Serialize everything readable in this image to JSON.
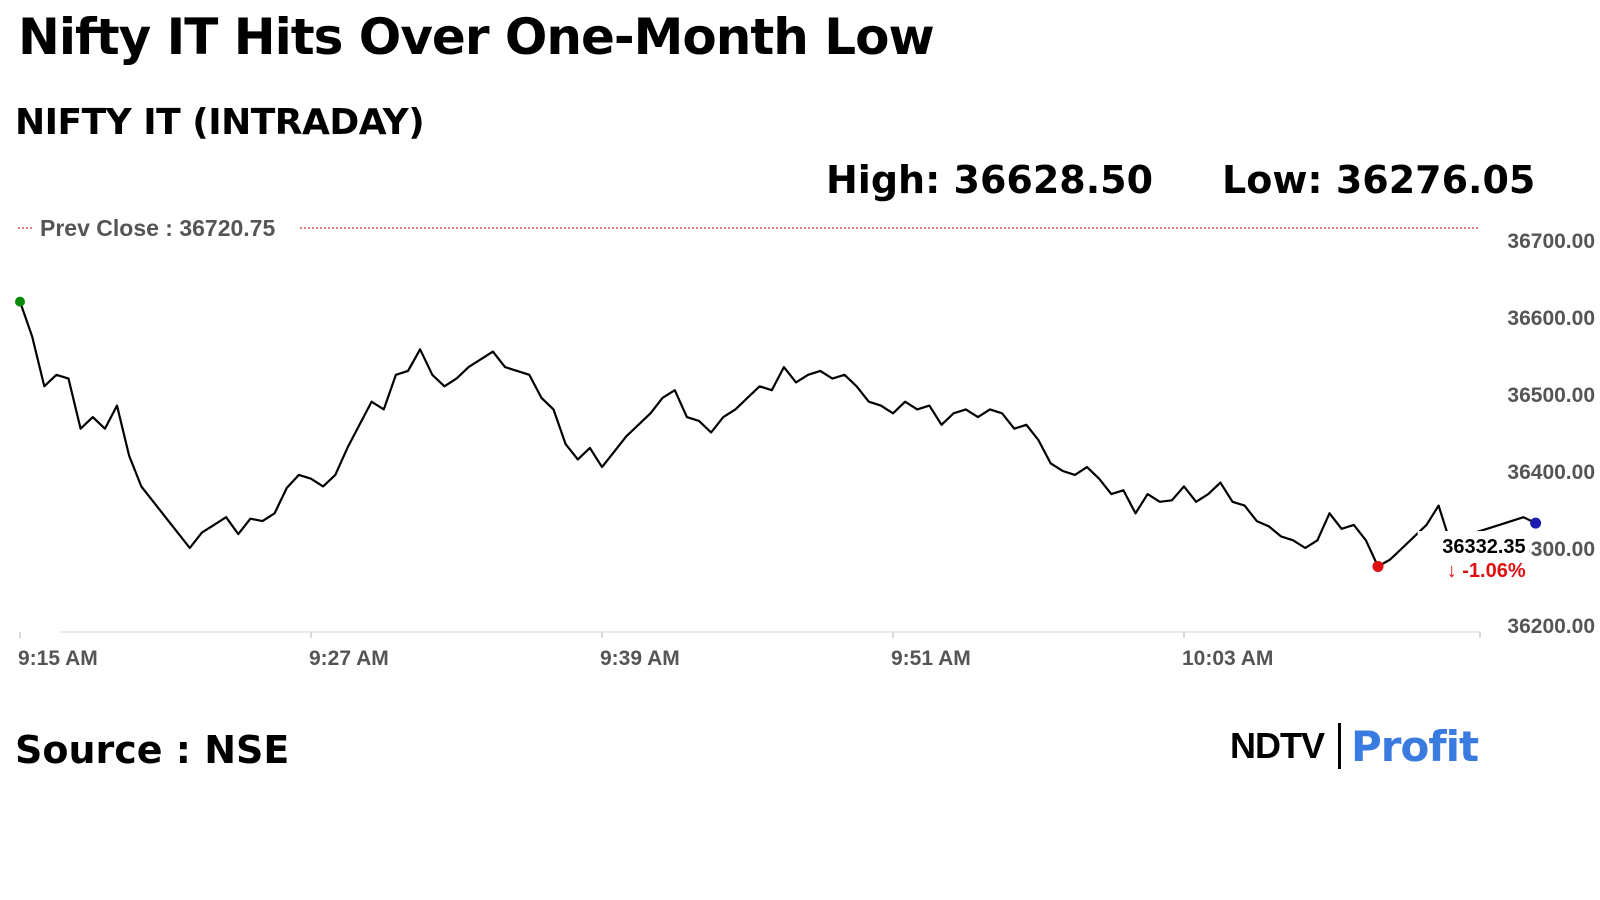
{
  "header": {
    "headline": "Nifty IT Hits Over One-Month Low",
    "subtitle": "NIFTY IT (INTRADAY)",
    "high_text": "High: 36628.50",
    "low_text": "Low: 36276.05"
  },
  "footer": {
    "source": "Source : NSE",
    "brand_primary": "NDTV",
    "brand_secondary": "Profit"
  },
  "colors": {
    "line": "#000000",
    "prev_close_line": "#d9534f",
    "start_marker": "#0a8a0a",
    "low_marker": "#e01010",
    "last_marker": "#1a1ab0",
    "change_negative": "#e01010",
    "axis_text": "#555555",
    "brand_accent": "#3a7be0"
  },
  "chart_data": {
    "type": "line",
    "title": "",
    "xlabel": "",
    "ylabel": "",
    "ylim": [
      36200,
      36720.75
    ],
    "yticks": [
      36700,
      36600,
      36500,
      36400,
      36300,
      36200
    ],
    "ytick_labels": [
      "36700.00",
      "36600.00",
      "36500.00",
      "36400.00",
      "36300.00",
      "36200.00"
    ],
    "xlim": [
      "9:15",
      "10:15"
    ],
    "xticks": [
      "9:15",
      "9:27",
      "9:39",
      "9:51",
      "10:03"
    ],
    "xtick_labels": [
      "9:15 AM",
      "9:27 AM",
      "9:39 AM",
      "9:51 AM",
      "10:03 AM"
    ],
    "prev_close": 36720.75,
    "prev_close_label": "Prev Close : 36720.75",
    "last_value_label": "36332.35",
    "change_label": "↓ -1.06%",
    "grid": false,
    "legend": "none",
    "series": [
      {
        "points": [
          [
            "9:15",
            36620
          ],
          [
            "9:15:30",
            36575
          ],
          [
            "9:16",
            36510
          ],
          [
            "9:16:30",
            36525
          ],
          [
            "9:17",
            36520
          ],
          [
            "9:17:30",
            36455
          ],
          [
            "9:18",
            36470
          ],
          [
            "9:18:30",
            36455
          ],
          [
            "9:19",
            36485
          ],
          [
            "9:19:30",
            36420
          ],
          [
            "9:20",
            36380
          ],
          [
            "9:21",
            36340
          ],
          [
            "9:22",
            36300
          ],
          [
            "9:22:30",
            36320
          ],
          [
            "9:23",
            36330
          ],
          [
            "9:23:30",
            36340
          ],
          [
            "9:24",
            36318
          ],
          [
            "9:24:30",
            36338
          ],
          [
            "9:25",
            36335
          ],
          [
            "9:25:30",
            36345
          ],
          [
            "9:26",
            36378
          ],
          [
            "9:26:30",
            36395
          ],
          [
            "9:27",
            36390
          ],
          [
            "9:27:30",
            36380
          ],
          [
            "9:28",
            36395
          ],
          [
            "9:28:30",
            36430
          ],
          [
            "9:29",
            36460
          ],
          [
            "9:29:30",
            36490
          ],
          [
            "9:30",
            36480
          ],
          [
            "9:30:30",
            36525
          ],
          [
            "9:31",
            36530
          ],
          [
            "9:31:30",
            36558
          ],
          [
            "9:32",
            36525
          ],
          [
            "9:32:30",
            36510
          ],
          [
            "9:33",
            36520
          ],
          [
            "9:33:30",
            36535
          ],
          [
            "9:34",
            36545
          ],
          [
            "9:34:30",
            36555
          ],
          [
            "9:35",
            36535
          ],
          [
            "9:35:30",
            36530
          ],
          [
            "9:36",
            36525
          ],
          [
            "9:36:30",
            36495
          ],
          [
            "9:37",
            36480
          ],
          [
            "9:37:30",
            36435
          ],
          [
            "9:38",
            36415
          ],
          [
            "9:38:30",
            36430
          ],
          [
            "9:39",
            36405
          ],
          [
            "9:39:30",
            36425
          ],
          [
            "9:40",
            36445
          ],
          [
            "9:40:30",
            36460
          ],
          [
            "9:41",
            36475
          ],
          [
            "9:41:30",
            36495
          ],
          [
            "9:42",
            36505
          ],
          [
            "9:42:30",
            36470
          ],
          [
            "9:43",
            36465
          ],
          [
            "9:43:30",
            36450
          ],
          [
            "9:44",
            36470
          ],
          [
            "9:44:30",
            36480
          ],
          [
            "9:45",
            36495
          ],
          [
            "9:45:30",
            36510
          ],
          [
            "9:46",
            36505
          ],
          [
            "9:46:30",
            36535
          ],
          [
            "9:47",
            36515
          ],
          [
            "9:47:30",
            36525
          ],
          [
            "9:48",
            36530
          ],
          [
            "9:48:30",
            36520
          ],
          [
            "9:49",
            36525
          ],
          [
            "9:49:30",
            36510
          ],
          [
            "9:50",
            36490
          ],
          [
            "9:50:30",
            36485
          ],
          [
            "9:51",
            36475
          ],
          [
            "9:51:30",
            36490
          ],
          [
            "9:52",
            36480
          ],
          [
            "9:52:30",
            36485
          ],
          [
            "9:53",
            36460
          ],
          [
            "9:53:30",
            36475
          ],
          [
            "9:54",
            36480
          ],
          [
            "9:54:30",
            36470
          ],
          [
            "9:55",
            36480
          ],
          [
            "9:55:30",
            36475
          ],
          [
            "9:56",
            36455
          ],
          [
            "9:56:30",
            36460
          ],
          [
            "9:57",
            36440
          ],
          [
            "9:57:30",
            36410
          ],
          [
            "9:58",
            36400
          ],
          [
            "9:58:30",
            36395
          ],
          [
            "9:59",
            36405
          ],
          [
            "9:59:30",
            36390
          ],
          [
            "10:00",
            36370
          ],
          [
            "10:00:30",
            36375
          ],
          [
            "10:01",
            36345
          ],
          [
            "10:01:30",
            36370
          ],
          [
            "10:02",
            36360
          ],
          [
            "10:02:30",
            36362
          ],
          [
            "10:03",
            36380
          ],
          [
            "10:03:30",
            36360
          ],
          [
            "10:04",
            36370
          ],
          [
            "10:04:30",
            36385
          ],
          [
            "10:05",
            36360
          ],
          [
            "10:05:30",
            36355
          ],
          [
            "10:06",
            36335
          ],
          [
            "10:06:30",
            36328
          ],
          [
            "10:07",
            36315
          ],
          [
            "10:07:30",
            36310
          ],
          [
            "10:08",
            36300
          ],
          [
            "10:08:30",
            36310
          ],
          [
            "10:09",
            36345
          ],
          [
            "10:09:30",
            36325
          ],
          [
            "10:10",
            36330
          ],
          [
            "10:10:30",
            36310
          ],
          [
            "10:11",
            36276
          ],
          [
            "10:11:30",
            36285
          ],
          [
            "10:12",
            36300
          ],
          [
            "10:12:30",
            36315
          ],
          [
            "10:13",
            36330
          ],
          [
            "10:13:30",
            36355
          ],
          [
            "10:14",
            36305
          ],
          [
            "10:14:30",
            36315
          ],
          [
            "10:15",
            36320
          ],
          [
            "10:15:30",
            36325
          ],
          [
            "10:16",
            36330
          ],
          [
            "10:16:30",
            36335
          ],
          [
            "10:17",
            36340
          ],
          [
            "10:17:30",
            36332.35
          ]
        ]
      }
    ],
    "markers": {
      "start": [
        "9:15",
        36620
      ],
      "low": [
        "10:11",
        36276.05
      ],
      "last": [
        "10:17:30",
        36332.35
      ]
    }
  }
}
